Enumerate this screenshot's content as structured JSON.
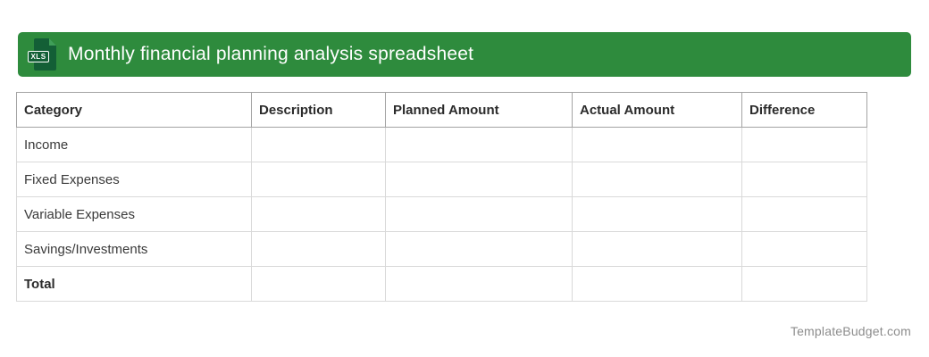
{
  "banner": {
    "title": "Monthly financial planning analysis spreadsheet",
    "file_badge": "XLS",
    "colors": {
      "banner_green": "#2e8b3d",
      "icon_dark_green": "#135f36"
    }
  },
  "table": {
    "columns": [
      "Category",
      "Description",
      "Planned Amount",
      "Actual Amount",
      "Difference"
    ],
    "rows": [
      {
        "label": "Income",
        "description": "",
        "planned": "",
        "actual": "",
        "difference": ""
      },
      {
        "label": "Fixed Expenses",
        "description": "",
        "planned": "",
        "actual": "",
        "difference": ""
      },
      {
        "label": "Variable Expenses",
        "description": "",
        "planned": "",
        "actual": "",
        "difference": ""
      },
      {
        "label": "Savings/Investments",
        "description": "",
        "planned": "",
        "actual": "",
        "difference": ""
      },
      {
        "label": "Total",
        "description": "",
        "planned": "",
        "actual": "",
        "difference": ""
      }
    ]
  },
  "footer": {
    "watermark": "TemplateBudget.com"
  }
}
